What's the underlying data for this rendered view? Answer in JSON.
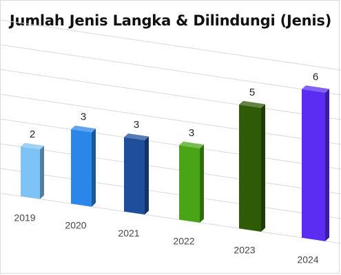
{
  "chart_data": {
    "type": "bar",
    "title": "Jumlah Jenis Langka & Dilindungi (Jenis)",
    "categories": [
      "2019",
      "2020",
      "2021",
      "2022",
      "2023",
      "2024"
    ],
    "values": [
      2,
      3,
      3,
      3,
      5,
      6
    ],
    "ylim": [
      0,
      7
    ],
    "grid": true,
    "legend": "none",
    "colors": [
      "#7ec3f5",
      "#2a86e8",
      "#1f4f9c",
      "#4aa516",
      "#2f5a06",
      "#5b2cf2"
    ]
  }
}
